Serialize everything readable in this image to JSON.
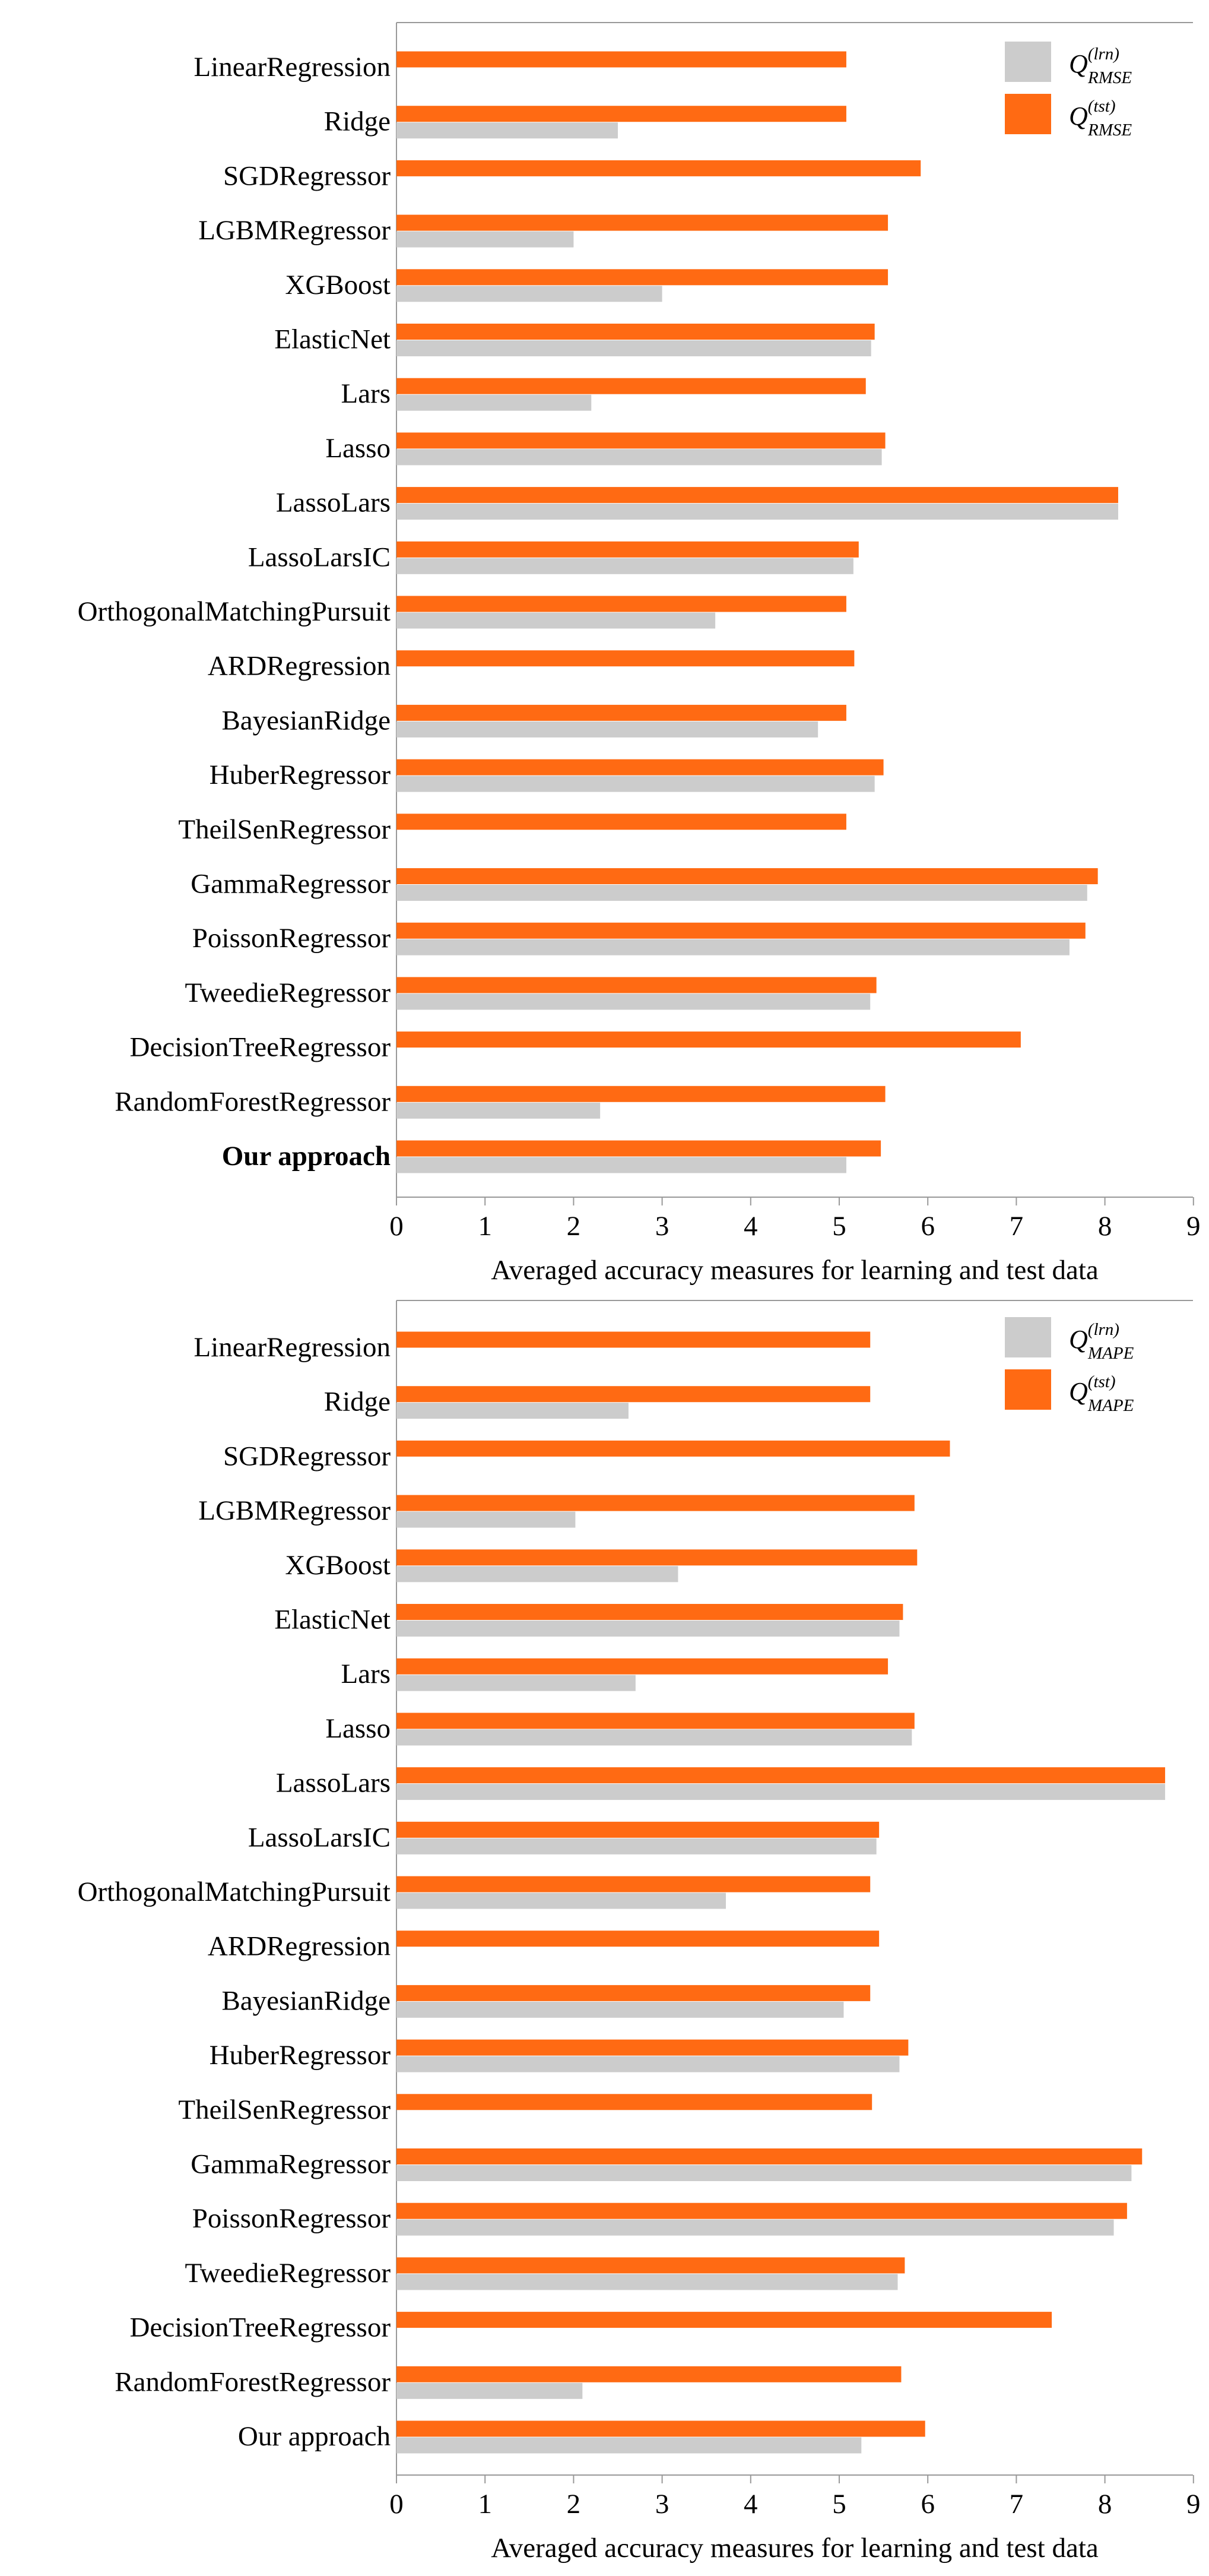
{
  "colors": {
    "train": "#cccccc",
    "test": "#ff6a13",
    "axis": "#999999",
    "text": "#000000"
  },
  "chart_data": [
    {
      "type": "bar",
      "orientation": "horizontal",
      "title": "",
      "xlabel": "Averaged accuracy measures for learning and test data",
      "ylabel": "",
      "xlim": [
        0,
        9
      ],
      "xticks": [
        "0",
        "1",
        "2",
        "3",
        "4",
        "5",
        "6",
        "7",
        "8",
        "9"
      ],
      "grid": false,
      "legend_position": "top-right",
      "categories": [
        "LinearRegression",
        "Ridge",
        "SGDRegressor",
        "LGBMRegressor",
        "XGBoost",
        "ElasticNet",
        "Lars",
        "Lasso",
        "LassoLars",
        "LassoLarsIC",
        "OrthogonalMatchingPursuit",
        "ARDRegression",
        "BayesianRidge",
        "HuberRegressor",
        "TheilSenRegressor",
        "GammaRegressor",
        "PoissonRegressor",
        "TweedieRegressor",
        "DecisionTreeRegressor",
        "RandomForestRegressor",
        "Our approach"
      ],
      "bold_categories": [
        "Our approach"
      ],
      "series": [
        {
          "name": "Q(lrn) RMSE",
          "legend_main": "Q",
          "legend_sup": "(lrn)",
          "legend_sub": "RMSE",
          "color_key": "train",
          "values": [
            0,
            2.5,
            0,
            2.0,
            3.0,
            5.36,
            2.2,
            5.48,
            8.15,
            5.16,
            3.6,
            0,
            4.76,
            5.4,
            0,
            7.8,
            7.6,
            5.35,
            0,
            2.3,
            5.08
          ]
        },
        {
          "name": "Q(tst) RMSE",
          "legend_main": "Q",
          "legend_sup": "(tst)",
          "legend_sub": "RMSE",
          "color_key": "test",
          "values": [
            5.08,
            5.08,
            5.92,
            5.55,
            5.55,
            5.4,
            5.3,
            5.52,
            8.15,
            5.22,
            5.08,
            5.17,
            5.08,
            5.5,
            5.08,
            7.92,
            7.78,
            5.42,
            7.05,
            5.52,
            5.47
          ]
        }
      ]
    },
    {
      "type": "bar",
      "orientation": "horizontal",
      "title": "",
      "xlabel": "Averaged accuracy measures for learning and test data",
      "ylabel": "",
      "xlim": [
        0,
        9
      ],
      "xticks": [
        "0",
        "1",
        "2",
        "3",
        "4",
        "5",
        "6",
        "7",
        "8",
        "9"
      ],
      "grid": false,
      "legend_position": "top-right",
      "categories": [
        "LinearRegression",
        "Ridge",
        "SGDRegressor",
        "LGBMRegressor",
        "XGBoost",
        "ElasticNet",
        "Lars",
        "Lasso",
        "LassoLars",
        "LassoLarsIC",
        "OrthogonalMatchingPursuit",
        "ARDRegression",
        "BayesianRidge",
        "HuberRegressor",
        "TheilSenRegressor",
        "GammaRegressor",
        "PoissonRegressor",
        "TweedieRegressor",
        "DecisionTreeRegressor",
        "RandomForestRegressor",
        "Our approach"
      ],
      "bold_categories": [],
      "series": [
        {
          "name": "Q(lrn) MAPE",
          "legend_main": "Q",
          "legend_sup": "(lrn)",
          "legend_sub": "MAPE",
          "color_key": "train",
          "values": [
            0,
            2.62,
            0,
            2.02,
            3.18,
            5.68,
            2.7,
            5.82,
            8.68,
            5.42,
            3.72,
            0,
            5.05,
            5.68,
            0,
            8.3,
            8.1,
            5.66,
            0,
            2.1,
            5.25
          ]
        },
        {
          "name": "Q(tst) MAPE",
          "legend_main": "Q",
          "legend_sup": "(tst)",
          "legend_sub": "MAPE",
          "color_key": "test",
          "values": [
            5.35,
            5.35,
            6.25,
            5.85,
            5.88,
            5.72,
            5.55,
            5.85,
            8.68,
            5.45,
            5.35,
            5.45,
            5.35,
            5.78,
            5.37,
            8.42,
            8.25,
            5.74,
            7.4,
            5.7,
            5.97
          ]
        }
      ]
    }
  ]
}
